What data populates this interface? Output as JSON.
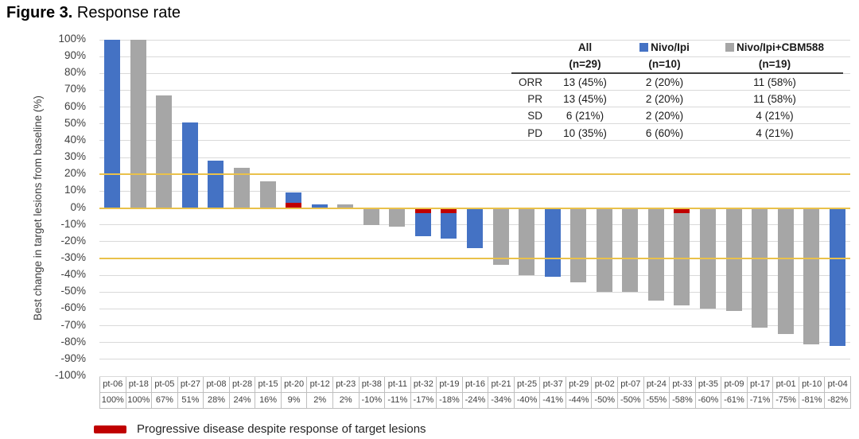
{
  "title": {
    "figure": "Figure 3.",
    "rest": " Response rate"
  },
  "chart_data": {
    "type": "bar",
    "title": "Figure 3. Response rate",
    "xlabel": "",
    "ylabel": "Best change in target lesions from baseline (%)",
    "ylim": [
      -100,
      100
    ],
    "ytick_step": 10,
    "ytick_suffix": "%",
    "grid": true,
    "gridline_color": "#D9D9D9",
    "reference_lines": [
      20,
      0,
      -30
    ],
    "reference_line_color": "#E9C14B",
    "pd_marker_color": "#C00000",
    "pd_marker_size_pct": 3,
    "groups": {
      "nivo_ipi": {
        "label": "Nivo/Ipi",
        "color": "#4472C4"
      },
      "cbm": {
        "label": "Nivo/Ipi+CBM588",
        "color": "#A6A6A6"
      }
    },
    "patients": [
      {
        "id": "pt-06",
        "value": 100,
        "group": "nivo_ipi"
      },
      {
        "id": "pt-18",
        "value": 100,
        "group": "cbm"
      },
      {
        "id": "pt-05",
        "value": 67,
        "group": "cbm"
      },
      {
        "id": "pt-27",
        "value": 51,
        "group": "nivo_ipi"
      },
      {
        "id": "pt-08",
        "value": 28,
        "group": "nivo_ipi"
      },
      {
        "id": "pt-28",
        "value": 24,
        "group": "cbm"
      },
      {
        "id": "pt-15",
        "value": 16,
        "group": "cbm"
      },
      {
        "id": "pt-20",
        "value": 9,
        "group": "nivo_ipi",
        "pd_marker": true
      },
      {
        "id": "pt-12",
        "value": 2,
        "group": "nivo_ipi"
      },
      {
        "id": "pt-23",
        "value": 2,
        "group": "cbm"
      },
      {
        "id": "pt-38",
        "value": -10,
        "group": "cbm"
      },
      {
        "id": "pt-11",
        "value": -11,
        "group": "cbm"
      },
      {
        "id": "pt-32",
        "value": -17,
        "group": "nivo_ipi",
        "pd_marker": true
      },
      {
        "id": "pt-19",
        "value": -18,
        "group": "nivo_ipi",
        "pd_marker": true
      },
      {
        "id": "pt-16",
        "value": -24,
        "group": "nivo_ipi"
      },
      {
        "id": "pt-21",
        "value": -34,
        "group": "cbm"
      },
      {
        "id": "pt-25",
        "value": -40,
        "group": "cbm"
      },
      {
        "id": "pt-37",
        "value": -41,
        "group": "nivo_ipi"
      },
      {
        "id": "pt-29",
        "value": -44,
        "group": "cbm"
      },
      {
        "id": "pt-02",
        "value": -50,
        "group": "cbm"
      },
      {
        "id": "pt-07",
        "value": -50,
        "group": "cbm"
      },
      {
        "id": "pt-24",
        "value": -55,
        "group": "cbm"
      },
      {
        "id": "pt-33",
        "value": -58,
        "group": "cbm",
        "pd_marker": true
      },
      {
        "id": "pt-35",
        "value": -60,
        "group": "cbm"
      },
      {
        "id": "pt-09",
        "value": -61,
        "group": "cbm"
      },
      {
        "id": "pt-17",
        "value": -71,
        "group": "cbm"
      },
      {
        "id": "pt-01",
        "value": -75,
        "group": "cbm"
      },
      {
        "id": "pt-10",
        "value": -81,
        "group": "cbm"
      },
      {
        "id": "pt-04",
        "value": -82,
        "group": "nivo_ipi"
      }
    ]
  },
  "stats_table": {
    "col_headers": [
      {
        "line1": "All",
        "line2": "(n=29)"
      },
      {
        "line1": "Nivo/Ipi",
        "line2": "(n=10)",
        "swatch": "#4472C4"
      },
      {
        "line1": "Nivo/Ipi+CBM588",
        "line2": "(n=19)",
        "swatch": "#A6A6A6"
      }
    ],
    "rows": [
      {
        "label": "ORR",
        "values": [
          "13 (45%)",
          "2 (20%)",
          "11 (58%)"
        ]
      },
      {
        "label": "PR",
        "values": [
          "13 (45%)",
          "2 (20%)",
          "11 (58%)"
        ]
      },
      {
        "label": "SD",
        "values": [
          "6 (21%)",
          "2 (20%)",
          "4 (21%)"
        ]
      },
      {
        "label": "PD",
        "values": [
          "10 (35%)",
          "6 (60%)",
          "4 (21%)"
        ]
      }
    ]
  },
  "legend_bottom": {
    "label": "Progressive disease despite response of target lesions",
    "color": "#C00000"
  }
}
